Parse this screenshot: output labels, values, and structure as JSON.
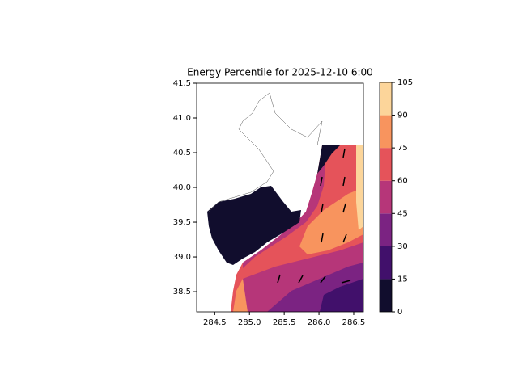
{
  "chart_data": {
    "type": "contour-map",
    "title": "Energy Percentile for 2025-12-10 6:00",
    "xlim": [
      284.24,
      286.64
    ],
    "ylim": [
      38.21,
      41.5
    ],
    "xticks": [
      284.5,
      {
        "value": 285,
        "label": "285.0"
      },
      285.5,
      {
        "value": 286,
        "label": "286.0"
      },
      286.5
    ],
    "yticks": [
      38.5,
      {
        "value": 39,
        "label": "39.0"
      },
      39.5,
      {
        "value": 40,
        "label": "40.0"
      },
      40.5,
      {
        "value": 41,
        "label": "41.0"
      },
      41.5
    ],
    "colorbar": {
      "levels": [
        0,
        15,
        30,
        45,
        60,
        75,
        90,
        105
      ],
      "colors": [
        "#110d2d",
        "#41106b",
        "#7b2382",
        "#b63679",
        "#e5535a",
        "#f8945e",
        "#fcd59a"
      ]
    }
  }
}
